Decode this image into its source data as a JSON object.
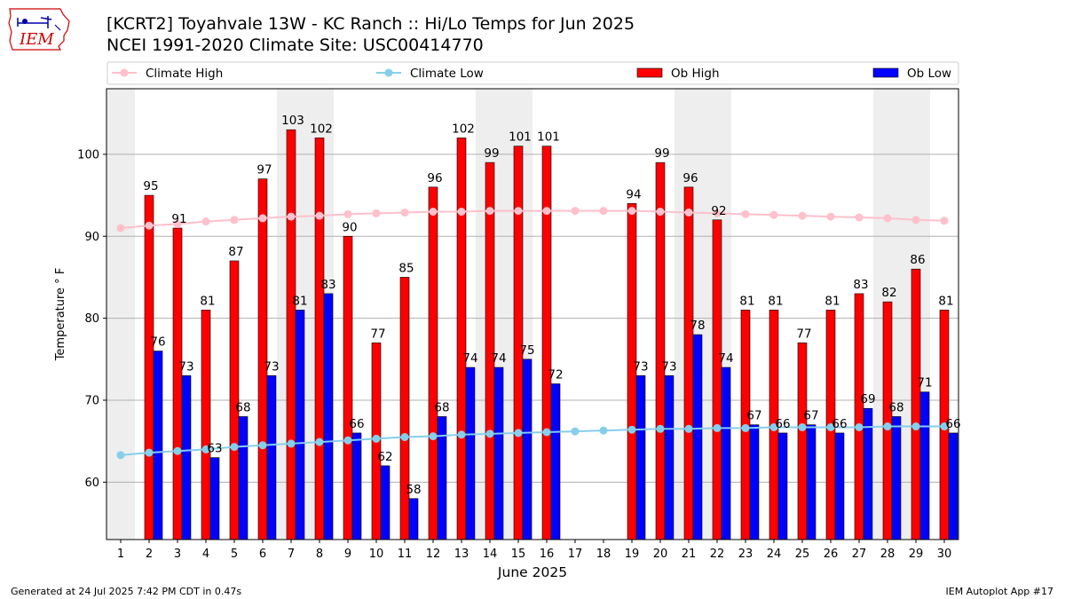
{
  "header": {
    "title_line1": "[KCRT2] Toyahvale 13W - KC Ranch :: Hi/Lo Temps for Jun 2025",
    "title_line2": "NCEI 1991-2020 Climate Site: USC00414770"
  },
  "logo": {
    "text": "IEM",
    "icon": "iowa-state-outline-logo"
  },
  "footer": {
    "left": "Generated at 24 Jul 2025 7:42 PM CDT in 0.47s",
    "right": "IEM Autoplot App #17"
  },
  "colors": {
    "ob_high": "#ff0000",
    "ob_low": "#0000ff",
    "climate_high": "#ffc0cb",
    "climate_low": "#87ceeb",
    "weekend_shade": "#eeeeee",
    "grid": "#b0b0b0"
  },
  "chart_data": {
    "type": "bar",
    "title": "[KCRT2] Toyahvale 13W - KC Ranch :: Hi/Lo Temps for Jun 2025",
    "xlabel": "June 2025",
    "ylabel": "Temperature ° F",
    "ylim": [
      53,
      108
    ],
    "yticks": [
      60,
      70,
      80,
      90,
      100
    ],
    "grid": "horizontal",
    "legend_position": "top",
    "legend": [
      "Climate High",
      "Climate Low",
      "Ob High",
      "Ob Low"
    ],
    "categories": [
      "1",
      "2",
      "3",
      "4",
      "5",
      "6",
      "7",
      "8",
      "9",
      "10",
      "11",
      "12",
      "13",
      "14",
      "15",
      "16",
      "17",
      "18",
      "19",
      "20",
      "21",
      "22",
      "23",
      "24",
      "25",
      "26",
      "27",
      "28",
      "29",
      "30"
    ],
    "shaded_days": [
      1,
      7,
      8,
      14,
      15,
      21,
      22,
      28,
      29
    ],
    "series": [
      {
        "name": "Ob High",
        "kind": "bar",
        "values": [
          null,
          95,
          91,
          81,
          87,
          97,
          103,
          102,
          90,
          77,
          85,
          96,
          102,
          99,
          101,
          101,
          null,
          null,
          94,
          99,
          96,
          92,
          81,
          81,
          77,
          81,
          83,
          82,
          86,
          81
        ]
      },
      {
        "name": "Ob Low",
        "kind": "bar",
        "values": [
          null,
          76,
          73,
          63,
          68,
          73,
          81,
          83,
          66,
          62,
          58,
          68,
          74,
          74,
          75,
          72,
          null,
          null,
          73,
          73,
          78,
          74,
          67,
          66,
          67,
          66,
          69,
          68,
          71,
          66
        ]
      },
      {
        "name": "Climate High",
        "kind": "line",
        "values": [
          91.0,
          91.3,
          91.5,
          91.8,
          92.0,
          92.2,
          92.4,
          92.5,
          92.7,
          92.8,
          92.9,
          93.0,
          93.0,
          93.1,
          93.1,
          93.1,
          93.1,
          93.1,
          93.1,
          93.0,
          92.9,
          92.8,
          92.7,
          92.6,
          92.5,
          92.4,
          92.3,
          92.2,
          92.0,
          91.9
        ]
      },
      {
        "name": "Climate Low",
        "kind": "line",
        "values": [
          63.3,
          63.6,
          63.8,
          64.0,
          64.3,
          64.5,
          64.7,
          64.9,
          65.1,
          65.3,
          65.5,
          65.6,
          65.8,
          65.9,
          66.0,
          66.1,
          66.2,
          66.3,
          66.4,
          66.5,
          66.5,
          66.6,
          66.6,
          66.7,
          66.7,
          66.7,
          66.7,
          66.8,
          66.8,
          66.8
        ]
      }
    ]
  }
}
